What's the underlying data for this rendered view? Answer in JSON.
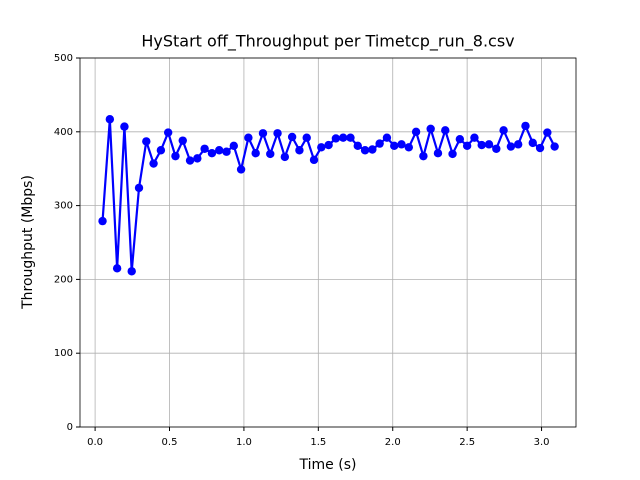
{
  "chart_data": {
    "type": "line",
    "title": "HyStart off_Throughput per Timetcp_run_8.csv",
    "x_label": "Time (s)",
    "y_label": "Throughput (Mbps)",
    "x": [
      0.05,
      0.099,
      0.148,
      0.197,
      0.246,
      0.295,
      0.344,
      0.393,
      0.442,
      0.491,
      0.54,
      0.589,
      0.638,
      0.687,
      0.736,
      0.785,
      0.834,
      0.883,
      0.932,
      0.981,
      1.03,
      1.079,
      1.128,
      1.177,
      1.226,
      1.275,
      1.324,
      1.373,
      1.422,
      1.471,
      1.52,
      1.569,
      1.618,
      1.667,
      1.716,
      1.765,
      1.814,
      1.863,
      1.912,
      1.961,
      2.01,
      2.059,
      2.108,
      2.157,
      2.206,
      2.255,
      2.304,
      2.353,
      2.402,
      2.451,
      2.5,
      2.549,
      2.598,
      2.647,
      2.696,
      2.745,
      2.794,
      2.843,
      2.892,
      2.941,
      2.99,
      3.039,
      3.088
    ],
    "series": [
      {
        "color": "#0000ff",
        "values": [
          279,
          417,
          215,
          407,
          211,
          324,
          387,
          357,
          375,
          399,
          367,
          388,
          361,
          364,
          377,
          371,
          375,
          373,
          381,
          349,
          392,
          371,
          398,
          370,
          398,
          366,
          393,
          375,
          392,
          362,
          379,
          382,
          391,
          392,
          392,
          381,
          375,
          376,
          384,
          392,
          381,
          383,
          379,
          400,
          367,
          404,
          371,
          402,
          370,
          390,
          381,
          392,
          382,
          383,
          377,
          402,
          380,
          383,
          408,
          385,
          378,
          399,
          380
        ]
      }
    ],
    "xlim": [
      -0.1015,
      3.2315
    ],
    "ylim": [
      0,
      500
    ],
    "xticks": [
      {
        "value": 0,
        "label": "0.0"
      },
      0.5,
      {
        "value": 1,
        "label": "1.0"
      },
      1.5,
      {
        "value": 2,
        "label": "2.0"
      },
      2.5,
      {
        "value": 3,
        "label": "3.0"
      }
    ],
    "yticks": [
      0,
      100,
      200,
      300,
      400,
      500
    ],
    "grid": true
  }
}
